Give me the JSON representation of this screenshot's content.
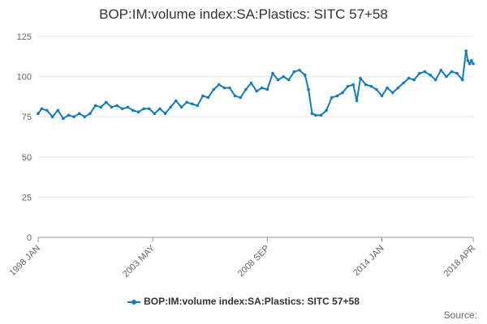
{
  "chart_data": {
    "type": "line",
    "title": "BOP:IM:volume index:SA:Plastics: SITC 57+58",
    "xlabel": "",
    "ylabel": "",
    "ylim": [
      0,
      125
    ],
    "yticks": [
      0,
      25,
      50,
      75,
      100,
      125
    ],
    "x_range": [
      "1998 JAN",
      "2018 APR"
    ],
    "xticks": [
      "1998 JAN",
      "2003 MAY",
      "2008 SEP",
      "2014 JAN",
      "2018 APR"
    ],
    "legend": "bottom-center",
    "grid": true,
    "series": [
      {
        "name": "BOP:IM:volume index:SA:Plastics: SITC 57+58",
        "color": "#0f7dbf",
        "points": [
          [
            "1998 JAN",
            77
          ],
          [
            "1998 MAR",
            80
          ],
          [
            "1998 JUN",
            79
          ],
          [
            "1998 SEP",
            75
          ],
          [
            "1998 DEC",
            79
          ],
          [
            "1999 MAR",
            74
          ],
          [
            "1999 JUN",
            76
          ],
          [
            "1999 SEP",
            75
          ],
          [
            "1999 DEC",
            77
          ],
          [
            "2000 MAR",
            75
          ],
          [
            "2000 JUN",
            77
          ],
          [
            "2000 SEP",
            82
          ],
          [
            "2000 DEC",
            81
          ],
          [
            "2001 MAR",
            84
          ],
          [
            "2001 JUN",
            81
          ],
          [
            "2001 SEP",
            82
          ],
          [
            "2001 DEC",
            80
          ],
          [
            "2002 MAR",
            81
          ],
          [
            "2002 JUN",
            79
          ],
          [
            "2002 SEP",
            78
          ],
          [
            "2002 DEC",
            80
          ],
          [
            "2003 MAR",
            80
          ],
          [
            "2003 JUN",
            77
          ],
          [
            "2003 SEP",
            80
          ],
          [
            "2003 DEC",
            77
          ],
          [
            "2004 MAR",
            81
          ],
          [
            "2004 JUN",
            85
          ],
          [
            "2004 SEP",
            81
          ],
          [
            "2004 DEC",
            84
          ],
          [
            "2005 MAR",
            83
          ],
          [
            "2005 JUN",
            82
          ],
          [
            "2005 SEP",
            88
          ],
          [
            "2005 DEC",
            87
          ],
          [
            "2006 MAR",
            92
          ],
          [
            "2006 JUN",
            95
          ],
          [
            "2006 SEP",
            93
          ],
          [
            "2006 DEC",
            93
          ],
          [
            "2007 MAR",
            88
          ],
          [
            "2007 JUN",
            87
          ],
          [
            "2007 SEP",
            92
          ],
          [
            "2007 DEC",
            96
          ],
          [
            "2008 MAR",
            91
          ],
          [
            "2008 JUN",
            93
          ],
          [
            "2008 SEP",
            92
          ],
          [
            "2008 DEC",
            102
          ],
          [
            "2009 MAR",
            98
          ],
          [
            "2009 JUN",
            100
          ],
          [
            "2009 SEP",
            98
          ],
          [
            "2009 DEC",
            103
          ],
          [
            "2010 MAR",
            104
          ],
          [
            "2010 JUN",
            101
          ],
          [
            "2010 AUG",
            92
          ],
          [
            "2010 OCT",
            77
          ],
          [
            "2010 DEC",
            76
          ],
          [
            "2011 MAR",
            76
          ],
          [
            "2011 JUN",
            79
          ],
          [
            "2011 SEP",
            87
          ],
          [
            "2011 DEC",
            88
          ],
          [
            "2012 MAR",
            90
          ],
          [
            "2012 JUN",
            94
          ],
          [
            "2012 SEP",
            95
          ],
          [
            "2012 NOV",
            85
          ],
          [
            "2013 JAN",
            99
          ],
          [
            "2013 APR",
            95
          ],
          [
            "2013 JUL",
            94
          ],
          [
            "2013 OCT",
            92
          ],
          [
            "2014 JAN",
            88
          ],
          [
            "2014 APR",
            93
          ],
          [
            "2014 JUL",
            90
          ],
          [
            "2014 OCT",
            93
          ],
          [
            "2015 JAN",
            96
          ],
          [
            "2015 APR",
            99
          ],
          [
            "2015 JUL",
            98
          ],
          [
            "2015 OCT",
            102
          ],
          [
            "2016 JAN",
            103
          ],
          [
            "2016 APR",
            101
          ],
          [
            "2016 JUL",
            98
          ],
          [
            "2016 OCT",
            104
          ],
          [
            "2017 JAN",
            100
          ],
          [
            "2017 APR",
            103
          ],
          [
            "2017 JUL",
            102
          ],
          [
            "2017 OCT",
            98
          ],
          [
            "2017 DEC",
            116
          ],
          [
            "2018 JAN",
            110
          ],
          [
            "2018 FEB",
            108
          ],
          [
            "2018 MAR",
            110
          ],
          [
            "2018 APR",
            108
          ]
        ]
      }
    ],
    "legend_label": "BOP:IM:volume index:SA:Plastics: SITC 57+58",
    "source_label": "Source:"
  }
}
